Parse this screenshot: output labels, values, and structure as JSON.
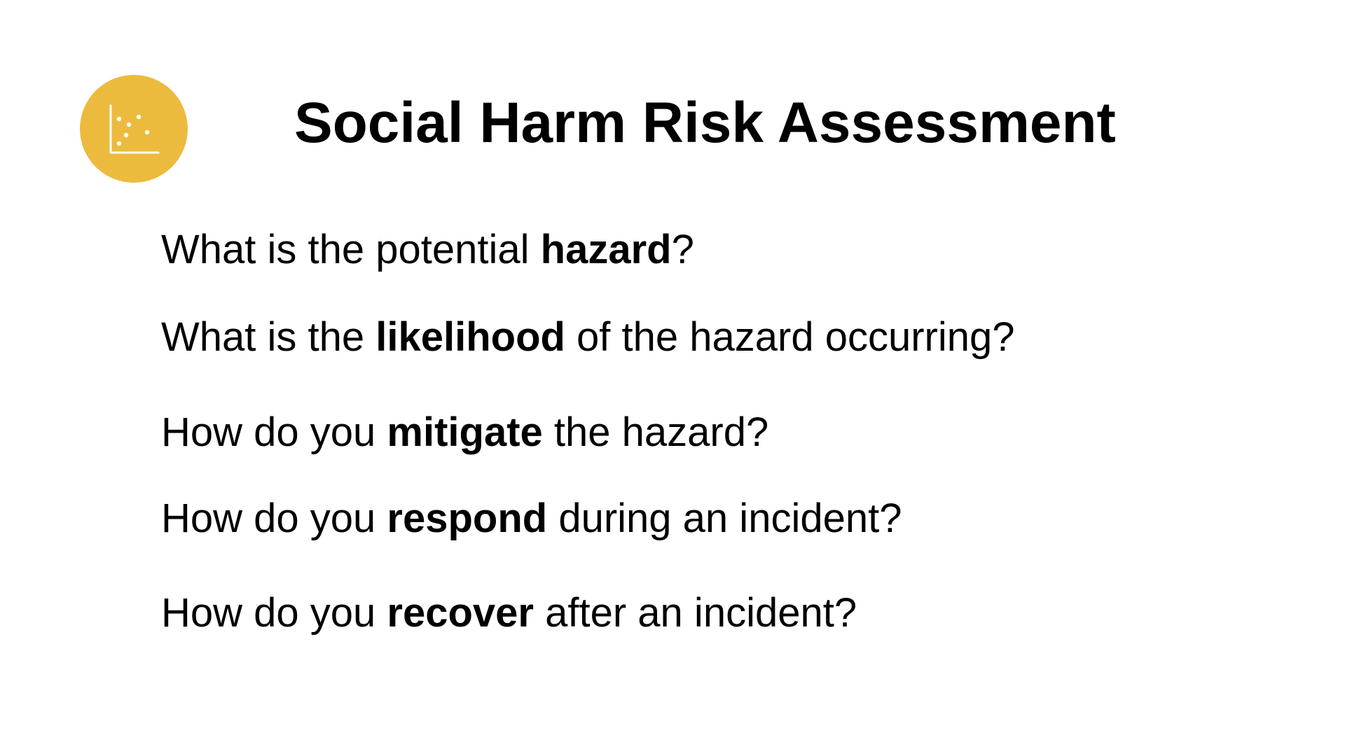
{
  "title": "Social Harm Risk Assessment",
  "badge": {
    "icon": "scatter-plot-icon",
    "color": "#ecbb3e"
  },
  "questions": [
    {
      "before": "What is the potential ",
      "keyword": "hazard",
      "after": "?"
    },
    {
      "before": "What is the ",
      "keyword": "likelihood",
      "after": " of the hazard occurring?"
    },
    {
      "before": "How do you ",
      "keyword": "mitigate",
      "after": " the hazard?"
    },
    {
      "before": "How do you ",
      "keyword": "respond",
      "after": " during an incident?"
    },
    {
      "before": "How do you ",
      "keyword": "recover",
      "after": " after an incident?"
    }
  ]
}
